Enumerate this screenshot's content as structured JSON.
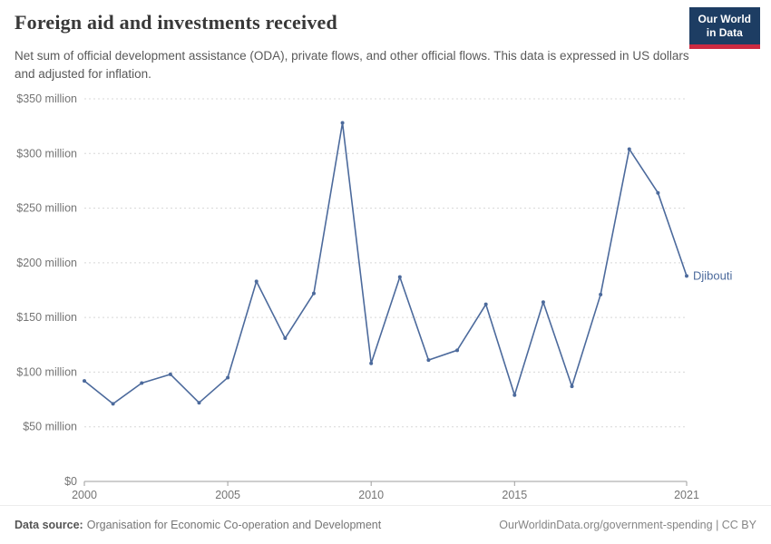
{
  "header": {
    "title": "Foreign aid and investments received",
    "subtitle": "Net sum of official development assistance (ODA), private flows, and other official flows. This data is expressed in US dollars and adjusted for inflation.",
    "logo": {
      "line1": "Our World",
      "line2": "in Data",
      "bg_color": "#1d3d63",
      "accent_color": "#cc2a41"
    }
  },
  "chart_data": {
    "type": "line",
    "title": "Foreign aid and investments received",
    "xlabel": "",
    "ylabel": "",
    "xlim": [
      2000,
      2021
    ],
    "ylim": [
      0,
      350
    ],
    "grid": "horizontal-dashed",
    "legend": "end-of-line-label",
    "x": [
      2000,
      2001,
      2002,
      2003,
      2004,
      2005,
      2006,
      2007,
      2008,
      2009,
      2010,
      2011,
      2012,
      2013,
      2014,
      2015,
      2016,
      2017,
      2018,
      2019,
      2020,
      2021
    ],
    "series": [
      {
        "name": "Djibouti",
        "color": "#4C6A9C",
        "unit": "US$ million",
        "values": [
          92,
          71,
          90,
          98,
          72,
          95,
          183,
          131,
          172,
          328,
          108,
          187,
          111,
          120,
          162,
          79,
          164,
          87,
          171,
          304,
          264,
          188
        ]
      }
    ],
    "yticks": [
      {
        "value": 0,
        "label": "$0"
      },
      {
        "value": 50,
        "label": "$50 million"
      },
      {
        "value": 100,
        "label": "$100 million"
      },
      {
        "value": 150,
        "label": "$150 million"
      },
      {
        "value": 200,
        "label": "$200 million"
      },
      {
        "value": 250,
        "label": "$250 million"
      },
      {
        "value": 300,
        "label": "$300 million"
      },
      {
        "value": 350,
        "label": "$350 million"
      }
    ],
    "xticks": [
      {
        "value": 2000,
        "label": "2000"
      },
      {
        "value": 2005,
        "label": "2005"
      },
      {
        "value": 2010,
        "label": "2010"
      },
      {
        "value": 2015,
        "label": "2015"
      },
      {
        "value": 2021,
        "label": "2021"
      }
    ],
    "colors": {
      "grid": "#d8d8d8",
      "axis": "#9e9e9e",
      "tick_text": "#757575"
    }
  },
  "footer": {
    "source_label": "Data source:",
    "source_text": "Organisation for Economic Co-operation and Development",
    "link_text": "OurWorldinData.org/government-spending | CC BY"
  }
}
